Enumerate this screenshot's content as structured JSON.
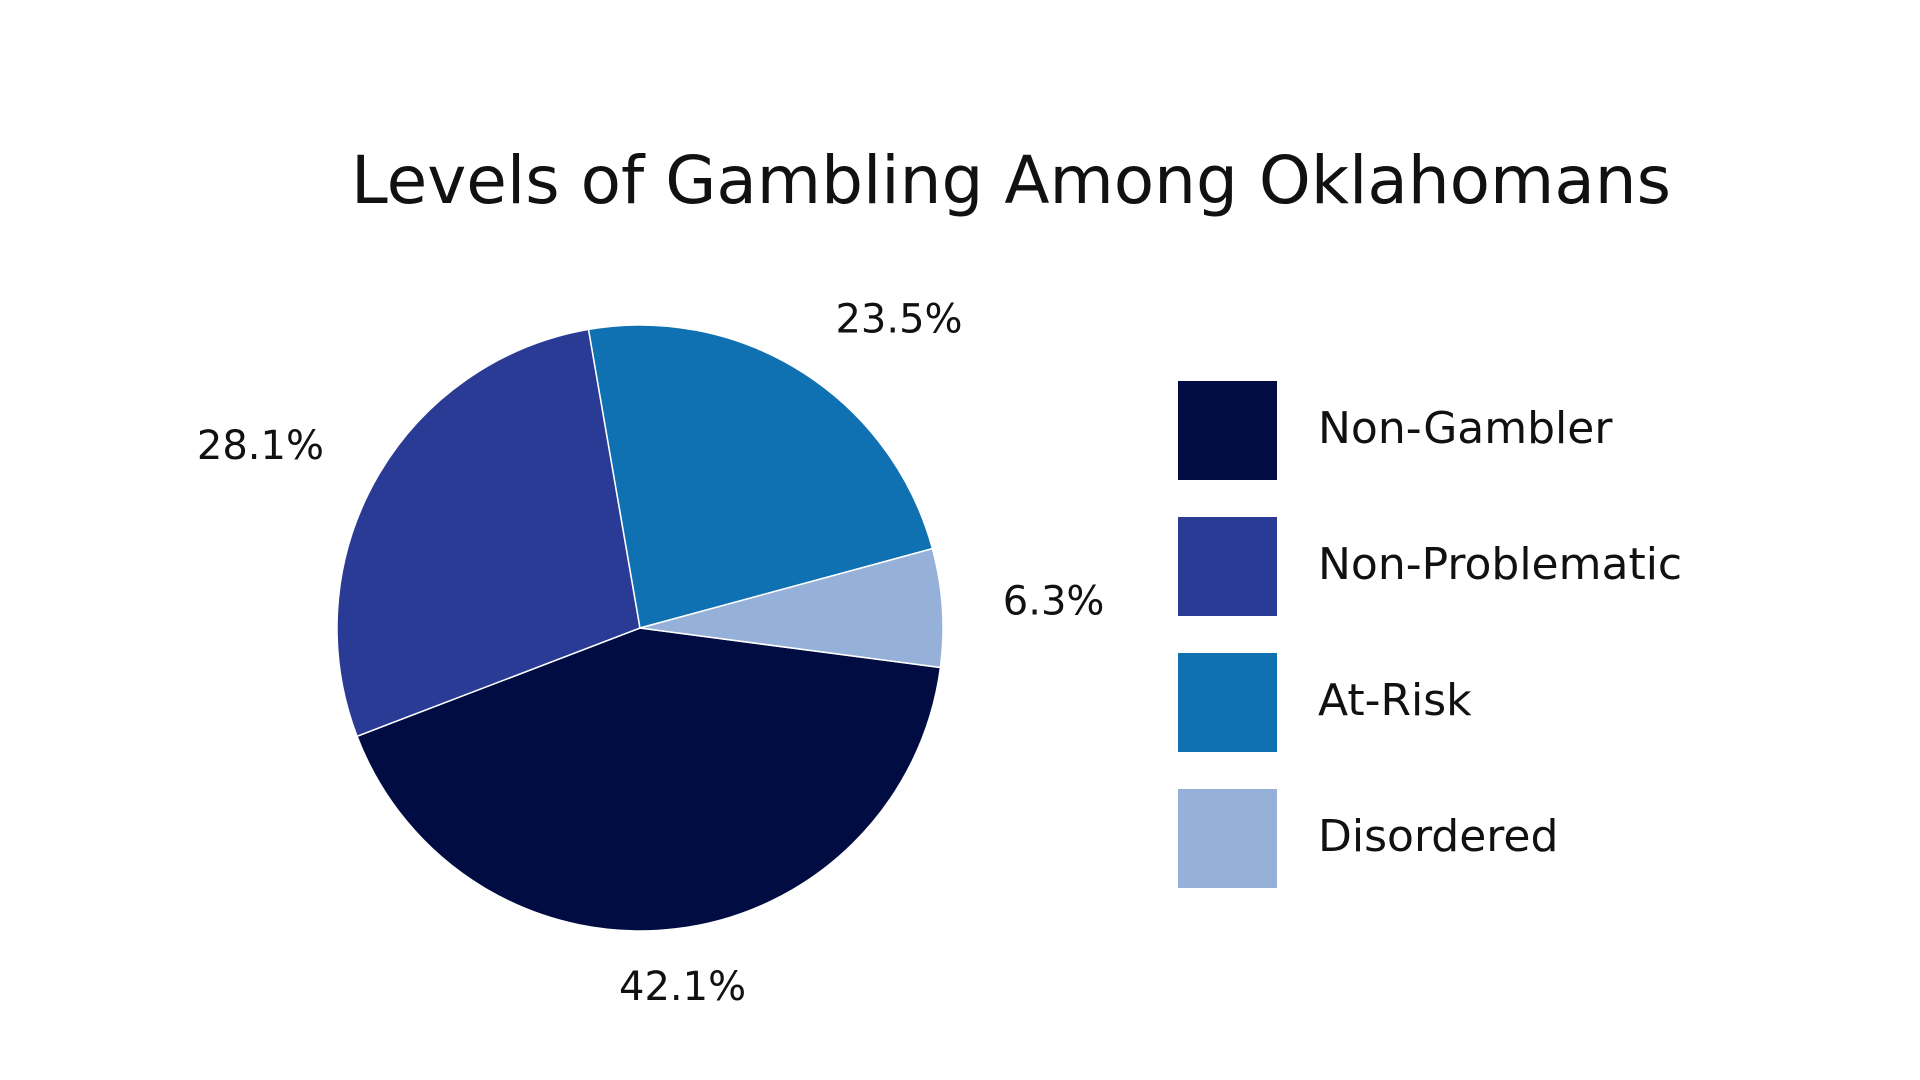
{
  "chart_data": {
    "type": "pie",
    "title": "Levels of Gambling Among Oklahomans",
    "categories": [
      "Non-Gambler",
      "Non-Problematic",
      "At-Risk",
      "Disordered"
    ],
    "values": [
      42.1,
      28.1,
      23.5,
      6.3
    ],
    "value_labels": [
      "42.1%",
      "28.1%",
      "23.5%",
      "6.3%"
    ],
    "colors": [
      "#000c42",
      "#2a3b96",
      "#0f71b2",
      "#95b1da"
    ],
    "legend": "right"
  }
}
